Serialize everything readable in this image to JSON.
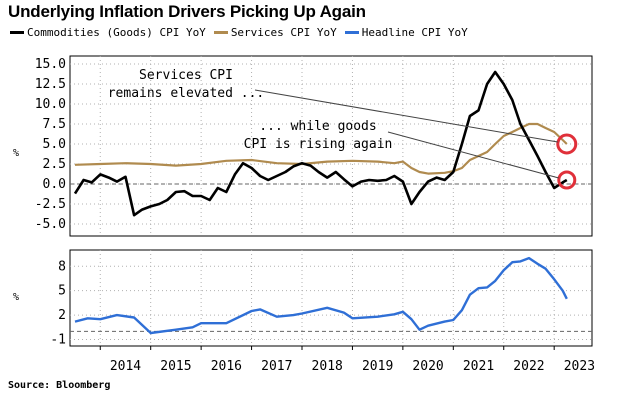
{
  "title": "Underlying Inflation Drivers Picking Up Again",
  "source": "Source: Bloomberg",
  "colors": {
    "commodities": "#000000",
    "services": "#b08b4f",
    "headline": "#2f6fd6",
    "highlight": "#e0303a"
  },
  "chart_data": [
    {
      "type": "line",
      "ylim": [
        -6.5,
        16
      ],
      "yticks": [
        "15.0",
        "12.5",
        "10.0",
        "7.5",
        "5.0",
        "2.5",
        "0.0",
        "-2.5",
        "-5.0"
      ],
      "ytick_values": [
        15.0,
        12.5,
        10.0,
        7.5,
        5.0,
        2.5,
        0.0,
        -2.5,
        -5.0
      ],
      "ylabel": "%",
      "annotations": [
        "Services CPI",
        "remains elevated ...",
        "... while goods",
        "CPI is rising again"
      ],
      "series": [
        {
          "name": "Commodities (Goods) CPI YoY",
          "x": [
            2013.5,
            2013.67,
            2013.83,
            2014.0,
            2014.17,
            2014.33,
            2014.5,
            2014.67,
            2014.83,
            2015.0,
            2015.17,
            2015.33,
            2015.5,
            2015.67,
            2015.83,
            2016.0,
            2016.17,
            2016.33,
            2016.5,
            2016.67,
            2016.83,
            2017.0,
            2017.17,
            2017.33,
            2017.5,
            2017.67,
            2017.83,
            2018.0,
            2018.17,
            2018.33,
            2018.5,
            2018.67,
            2018.83,
            2019.0,
            2019.17,
            2019.33,
            2019.5,
            2019.67,
            2019.83,
            2020.0,
            2020.17,
            2020.33,
            2020.5,
            2020.67,
            2020.83,
            2021.0,
            2021.17,
            2021.33,
            2021.5,
            2021.67,
            2021.83,
            2022.0,
            2022.17,
            2022.33,
            2022.5,
            2022.67,
            2022.83,
            2023.0,
            2023.17,
            2023.25
          ],
          "values": [
            -1.2,
            0.5,
            0.2,
            1.2,
            0.8,
            0.3,
            0.9,
            -3.9,
            -3.2,
            -2.8,
            -2.5,
            -2.0,
            -1.0,
            -0.9,
            -1.5,
            -1.5,
            -2.0,
            -0.5,
            -1.0,
            1.2,
            2.6,
            2.0,
            1.0,
            0.5,
            1.0,
            1.5,
            2.2,
            2.6,
            2.3,
            1.5,
            0.8,
            1.5,
            0.6,
            -0.3,
            0.3,
            0.5,
            0.4,
            0.5,
            1.0,
            0.3,
            -2.5,
            -1.0,
            0.3,
            0.8,
            0.5,
            1.5,
            5.0,
            8.5,
            9.2,
            12.5,
            14.0,
            12.5,
            10.5,
            7.5,
            5.5,
            3.5,
            1.5,
            -0.5,
            0.2,
            0.5
          ]
        },
        {
          "name": "Services CPI YoY",
          "x": [
            2013.5,
            2014.0,
            2014.5,
            2015.0,
            2015.5,
            2016.0,
            2016.5,
            2017.0,
            2017.5,
            2018.0,
            2018.5,
            2019.0,
            2019.5,
            2019.83,
            2020.0,
            2020.17,
            2020.33,
            2020.5,
            2020.83,
            2021.0,
            2021.17,
            2021.33,
            2021.5,
            2021.67,
            2021.83,
            2022.0,
            2022.17,
            2022.33,
            2022.5,
            2022.67,
            2022.83,
            2023.0,
            2023.17,
            2023.25
          ],
          "values": [
            2.4,
            2.5,
            2.6,
            2.5,
            2.3,
            2.5,
            2.9,
            3.0,
            2.6,
            2.5,
            2.8,
            2.9,
            2.8,
            2.6,
            2.8,
            2.0,
            1.5,
            1.3,
            1.4,
            1.6,
            2.0,
            3.0,
            3.5,
            4.0,
            5.0,
            6.0,
            6.5,
            7.0,
            7.5,
            7.5,
            7.0,
            6.5,
            5.5,
            5.0
          ]
        }
      ]
    },
    {
      "type": "line",
      "ylim": [
        -1.8,
        10
      ],
      "yticks": [
        "8",
        "5",
        "2",
        "-1"
      ],
      "ytick_values": [
        8,
        5,
        2,
        -1
      ],
      "ylabel": "%",
      "xticks": [
        "2014",
        "2015",
        "2016",
        "2017",
        "2018",
        "2019",
        "2020",
        "2021",
        "2022",
        "2023"
      ],
      "series": [
        {
          "name": "Headline CPI YoY",
          "x": [
            2013.5,
            2013.75,
            2014.0,
            2014.33,
            2014.67,
            2015.0,
            2015.5,
            2015.83,
            2016.0,
            2016.5,
            2017.0,
            2017.17,
            2017.5,
            2017.83,
            2018.0,
            2018.5,
            2018.83,
            2019.0,
            2019.5,
            2019.83,
            2020.0,
            2020.17,
            2020.33,
            2020.5,
            2020.83,
            2021.0,
            2021.17,
            2021.33,
            2021.5,
            2021.67,
            2021.83,
            2022.0,
            2022.17,
            2022.33,
            2022.5,
            2022.67,
            2022.83,
            2023.0,
            2023.17,
            2023.25
          ],
          "values": [
            1.2,
            1.6,
            1.5,
            2.0,
            1.7,
            -0.2,
            0.2,
            0.5,
            1.0,
            1.0,
            2.5,
            2.7,
            1.8,
            2.0,
            2.2,
            2.9,
            2.3,
            1.6,
            1.8,
            2.1,
            2.4,
            1.5,
            0.2,
            0.7,
            1.2,
            1.4,
            2.6,
            4.5,
            5.3,
            5.4,
            6.2,
            7.5,
            8.5,
            8.6,
            9.0,
            8.3,
            7.7,
            6.4,
            5.0,
            4.0
          ]
        }
      ]
    }
  ]
}
